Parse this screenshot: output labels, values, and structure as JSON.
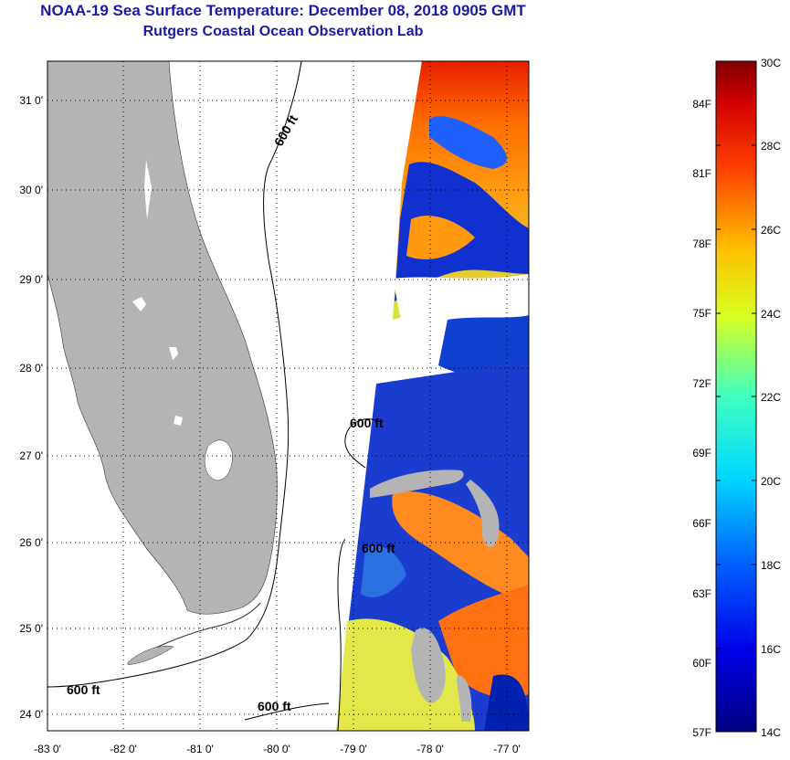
{
  "header": {
    "title": "NOAA-19 Sea Surface Temperature:  December 08, 2018 0905 GMT",
    "subtitle": "Rutgers Coastal Ocean Observation Lab"
  },
  "map": {
    "lat_labels": [
      "31 0'",
      "30 0'",
      "29 0'",
      "28 0'",
      "27 0'",
      "26 0'",
      "25 0'",
      "24 0'"
    ],
    "lon_labels": [
      "-83 0'",
      "-82 0'",
      "-81 0'",
      "-80 0'",
      "-79 0'",
      "-78 0'",
      "-77 0'"
    ],
    "lat_range": [
      23.8,
      31.5
    ],
    "lon_range": [
      -83,
      -76.7
    ],
    "contour_labels": {
      "north": "600 ft",
      "bahamas": "600 ft",
      "mid": "600 ft",
      "southwest": "600 ft",
      "south": "600 ft"
    }
  },
  "colorbar": {
    "celsius_top": "30C",
    "celsius_bottom": "14C",
    "fahrenheit_bottom": "57F",
    "celsius_labels": [
      "28C",
      "26C",
      "24C",
      "22C",
      "20C",
      "18C",
      "16C"
    ],
    "fahrenheit_labels": [
      "84F",
      "81F",
      "78F",
      "75F",
      "72F",
      "69F",
      "66F",
      "63F",
      "60F"
    ],
    "range_c": [
      14,
      30
    ]
  },
  "colors": {
    "title": "#1a1aa6",
    "land": "#b4b4b4"
  }
}
